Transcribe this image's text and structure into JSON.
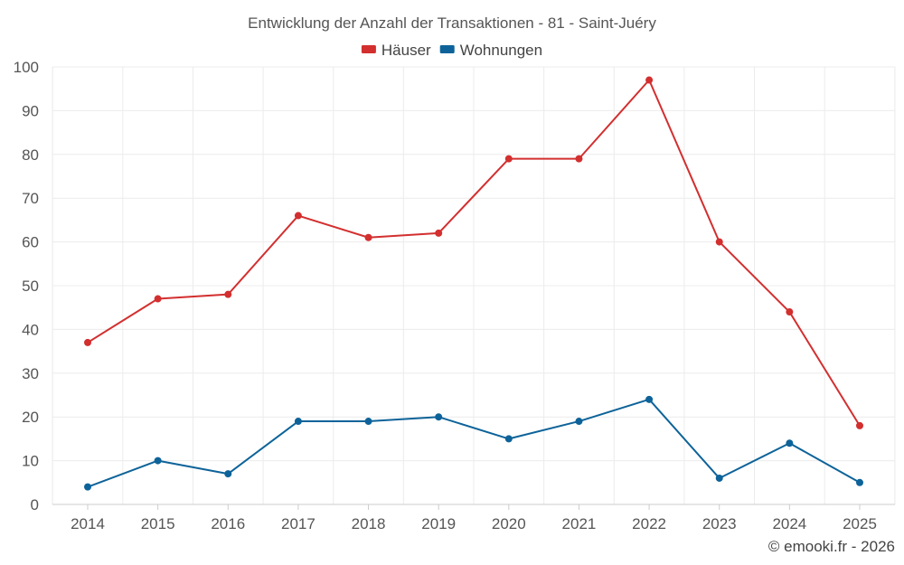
{
  "chart_data": {
    "type": "line",
    "title": "Entwicklung der Anzahl der Transaktionen - 81 - Saint-Juéry",
    "xlabel": "",
    "ylabel": "",
    "x": [
      "2014",
      "2015",
      "2016",
      "2017",
      "2018",
      "2019",
      "2020",
      "2021",
      "2022",
      "2023",
      "2024",
      "2025"
    ],
    "ylim": [
      0,
      100
    ],
    "yticks": [
      "0",
      "10",
      "20",
      "30",
      "40",
      "50",
      "60",
      "70",
      "80",
      "90",
      "100"
    ],
    "grid": true,
    "legend_position": "top-center",
    "series": [
      {
        "name": "Häuser",
        "color": "#d32f2f",
        "values": [
          37,
          47,
          48,
          66,
          61,
          62,
          79,
          79,
          97,
          60,
          44,
          18
        ]
      },
      {
        "name": "Wohnungen",
        "color": "#0d6399",
        "values": [
          4,
          10,
          7,
          19,
          19,
          20,
          15,
          19,
          24,
          6,
          14,
          5
        ]
      }
    ]
  },
  "credit": "© emooki.fr - 2026"
}
